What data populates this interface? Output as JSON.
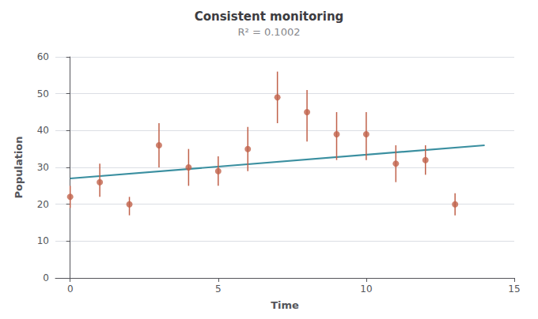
{
  "chart_data": {
    "type": "scatter",
    "title": "Consistent monitoring",
    "subtitle": "R² = 0.1002",
    "xlabel": "Time",
    "ylabel": "Population",
    "xlim": [
      -0.5,
      15
    ],
    "ylim": [
      0,
      60
    ],
    "xticks": [
      0,
      5,
      10,
      15
    ],
    "yticks": [
      0,
      10,
      20,
      30,
      40,
      50,
      60
    ],
    "grid": "y",
    "series": [
      {
        "type": "scatter",
        "color": "#c0614a",
        "x": [
          0,
          1,
          2,
          3,
          4,
          5,
          6,
          7,
          8,
          9,
          10,
          11,
          12,
          13
        ],
        "values": [
          22,
          26,
          20,
          36,
          30,
          29,
          35,
          49,
          45,
          39,
          39,
          31,
          32,
          20
        ],
        "yerr_low": [
          3,
          4,
          3,
          6,
          5,
          4,
          6,
          7,
          8,
          7,
          7,
          5,
          4,
          3
        ],
        "yerr_high": [
          3,
          5,
          2,
          6,
          5,
          4,
          6,
          7,
          6,
          6,
          6,
          5,
          4,
          3
        ]
      },
      {
        "type": "line",
        "color": "#3a8fa0",
        "x": [
          0,
          14
        ],
        "values": [
          27.0,
          36.0
        ]
      }
    ]
  }
}
